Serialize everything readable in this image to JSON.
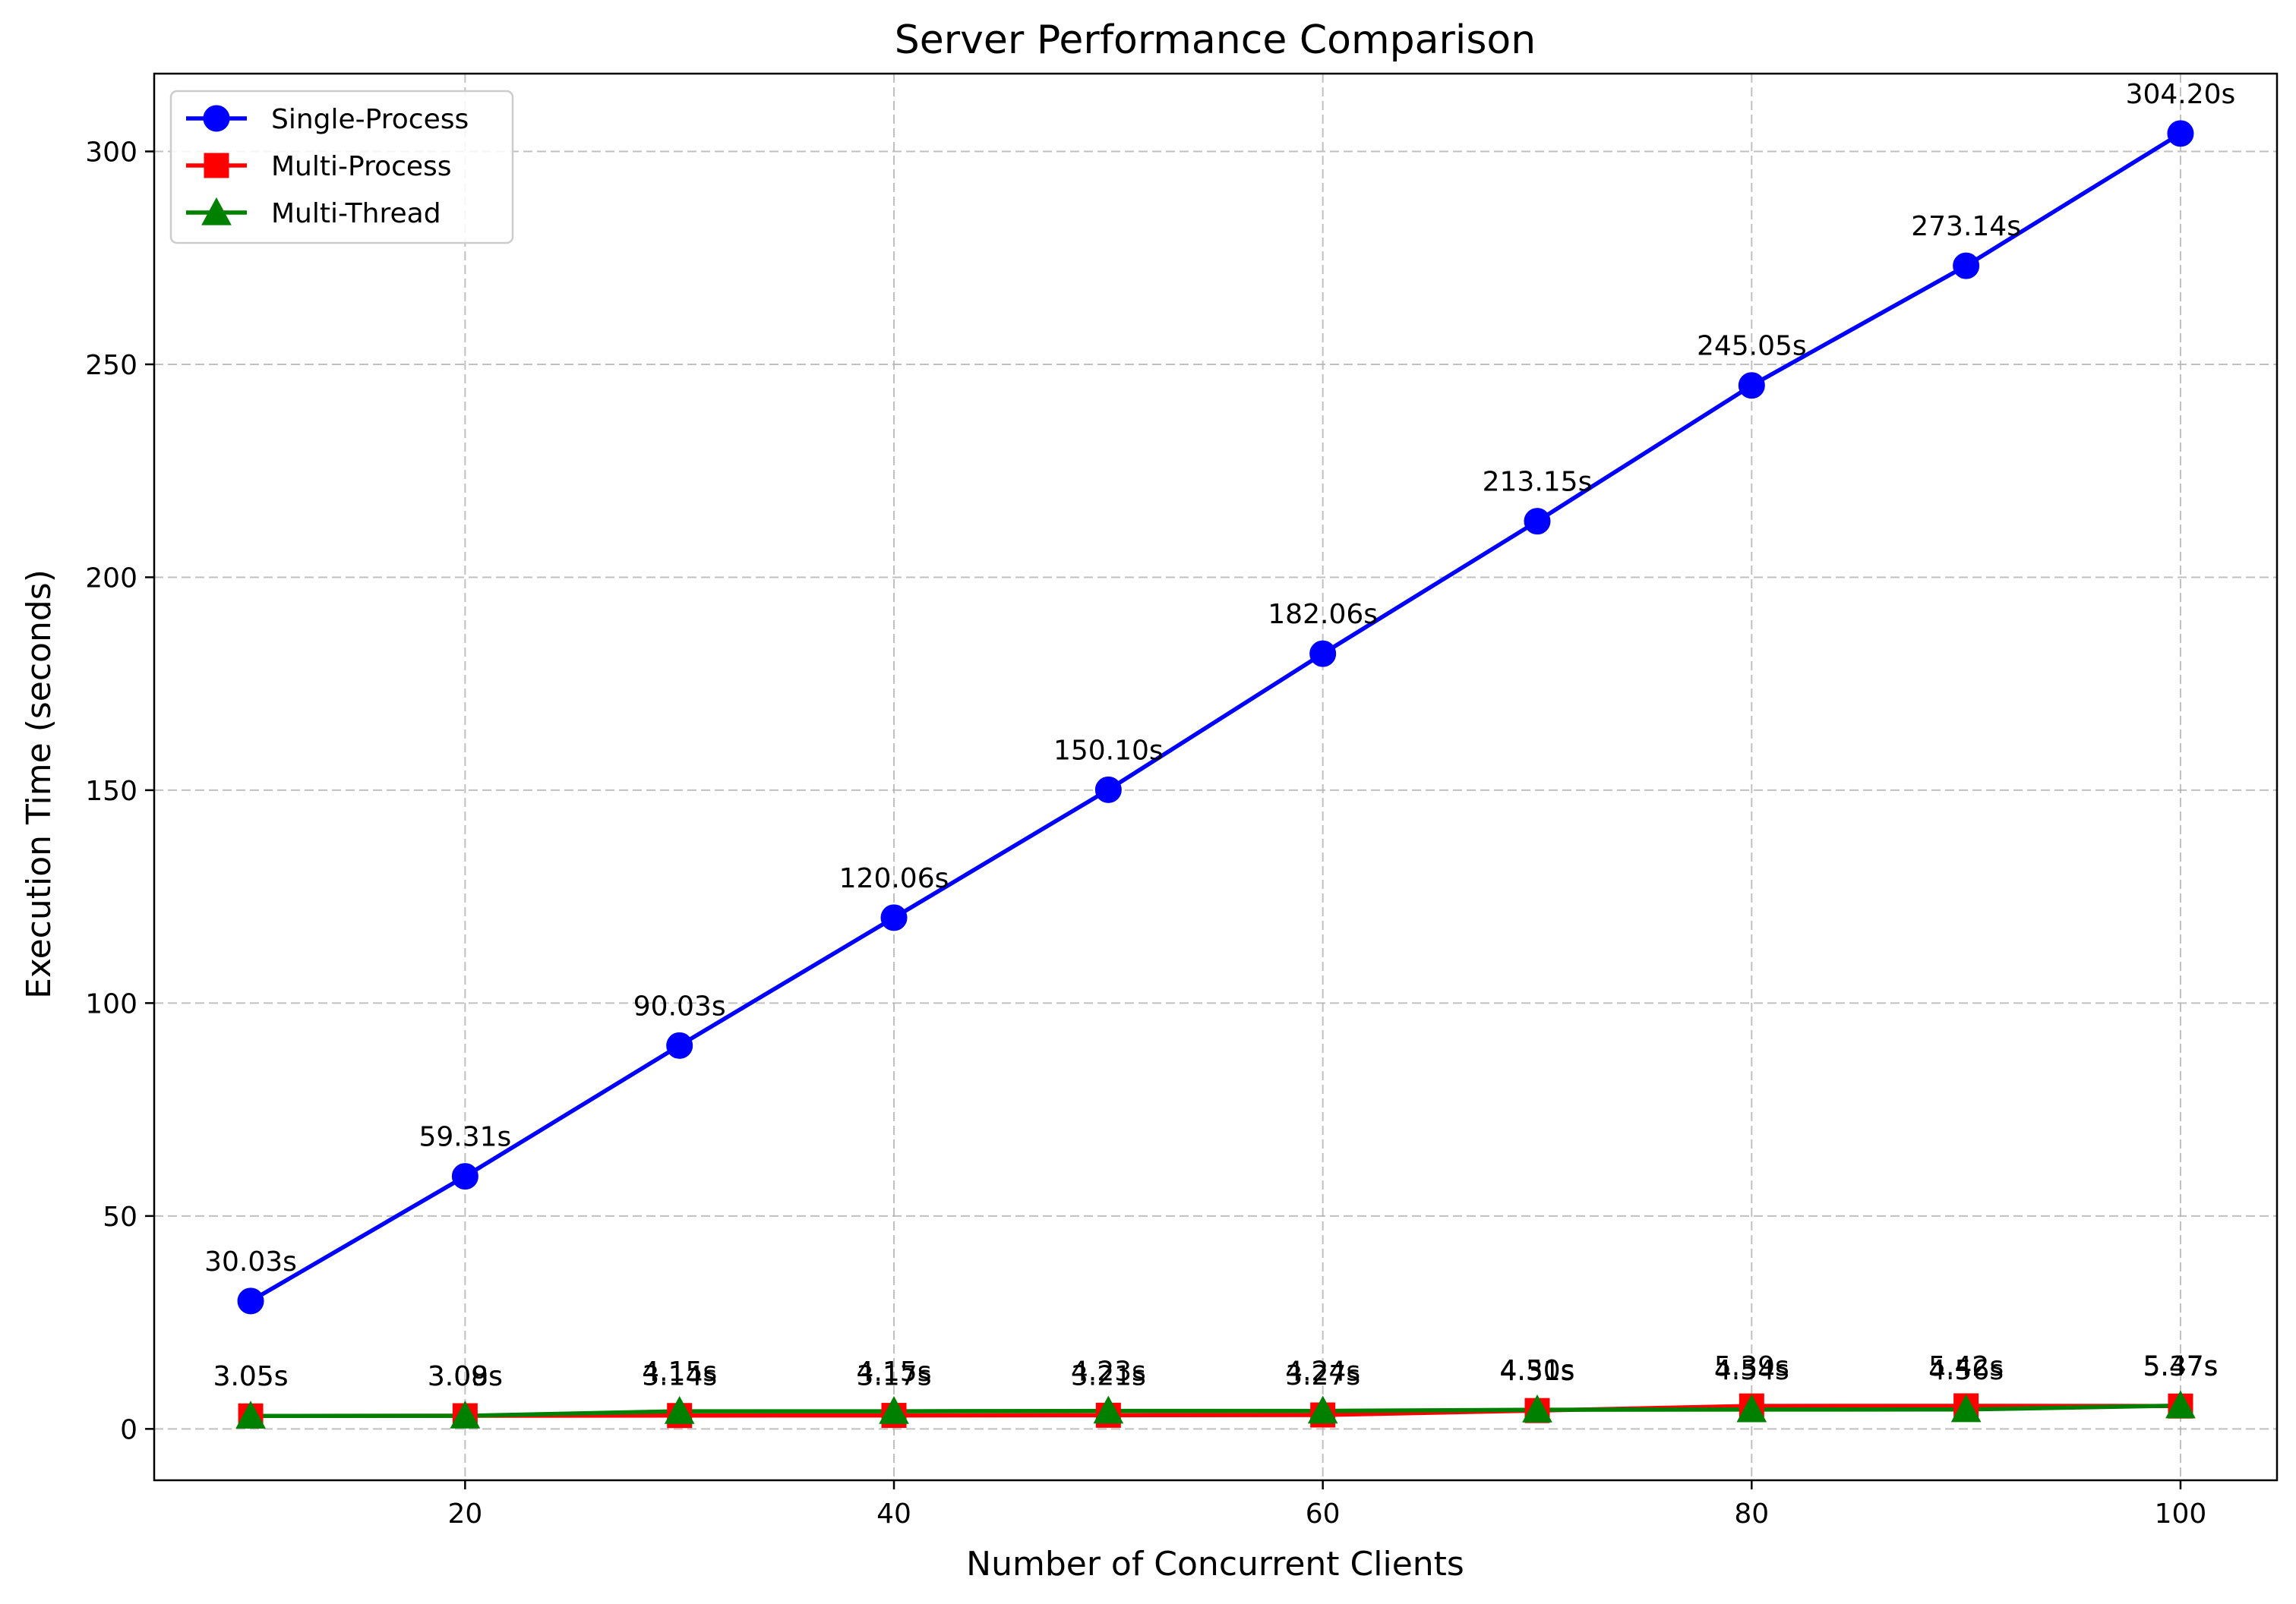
{
  "chart_data": {
    "type": "line",
    "title": "Server Performance Comparison",
    "xlabel": "Number of Concurrent Clients",
    "ylabel": "Execution Time (seconds)",
    "xlim": [
      5.5,
      104.5
    ],
    "ylim": [
      -12.06,
      318.27
    ],
    "xticks": [
      20,
      40,
      60,
      80,
      100
    ],
    "yticks": [
      0,
      50,
      100,
      150,
      200,
      250,
      300
    ],
    "grid": true,
    "legend_position": "top-left",
    "x": [
      10,
      20,
      30,
      40,
      50,
      60,
      70,
      80,
      90,
      100
    ],
    "series": [
      {
        "name": "Single-Process",
        "color": "#0000ff",
        "marker": "circle",
        "values": [
          30.03,
          59.31,
          90.03,
          120.06,
          150.1,
          182.06,
          213.15,
          245.05,
          273.14,
          304.2
        ],
        "labels": [
          "30.03s",
          "59.31s",
          "90.03s",
          "120.06s",
          "150.10s",
          "182.06s",
          "213.15s",
          "245.05s",
          "273.14s",
          "304.20s"
        ]
      },
      {
        "name": "Multi-Process",
        "color": "#ff0000",
        "marker": "square",
        "values": [
          3.05,
          3.09,
          3.14,
          3.17,
          3.21,
          3.27,
          4.31,
          5.39,
          5.42,
          5.37
        ],
        "labels": [
          "3.05s",
          "3.09s",
          "3.14s",
          "3.17s",
          "3.21s",
          "3.27s",
          "4.31s",
          "5.39s",
          "5.42s",
          "5.37s"
        ]
      },
      {
        "name": "Multi-Thread",
        "color": "#008000",
        "marker": "triangle",
        "values": [
          3.05,
          3.08,
          4.15,
          4.15,
          4.23,
          4.24,
          4.5,
          4.54,
          4.56,
          5.47
        ],
        "labels": [
          "3.05s",
          "3.08s",
          "4.15s",
          "4.15s",
          "4.23s",
          "4.24s",
          "4.50s",
          "4.54s",
          "4.56s",
          "5.47s"
        ]
      }
    ]
  }
}
